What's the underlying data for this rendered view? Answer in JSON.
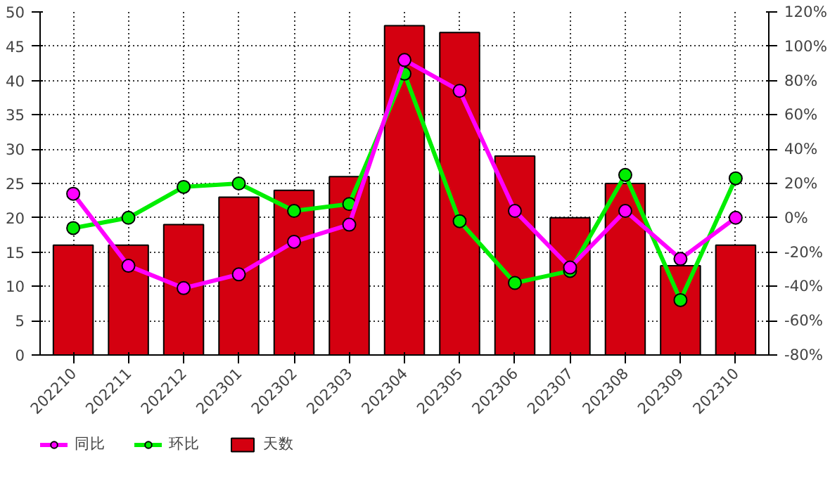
{
  "chart_data": {
    "type": "bar",
    "categories": [
      "202210",
      "202211",
      "202212",
      "202301",
      "202302",
      "202303",
      "202304",
      "202305",
      "202306",
      "202307",
      "202308",
      "202309",
      "202310"
    ],
    "series": [
      {
        "name": "同比",
        "type": "line",
        "axis": "y2",
        "color": "#ff00ff",
        "values": [
          14,
          -28,
          -41,
          -33,
          -14,
          -4,
          92,
          74,
          4,
          -29,
          4,
          -24,
          0
        ]
      },
      {
        "name": "环比",
        "type": "line",
        "axis": "y2",
        "color": "#00ee00",
        "values": [
          -6,
          0,
          18,
          20,
          4,
          8,
          84,
          -2,
          -38,
          -31,
          25,
          -48,
          23
        ]
      },
      {
        "name": "天数",
        "type": "bar",
        "color": "#d40010",
        "values": [
          16,
          16,
          19,
          23,
          24,
          26,
          48,
          47,
          29,
          20,
          25,
          13,
          16
        ]
      }
    ],
    "ylim": [
      0,
      50
    ],
    "yticks": [
      0,
      5,
      10,
      15,
      20,
      25,
      30,
      35,
      40,
      45,
      50
    ],
    "y2lim": [
      -80,
      120
    ],
    "y2ticks": [
      {
        "value": -80,
        "label": "-80%"
      },
      {
        "value": -60,
        "label": "-60%"
      },
      {
        "value": -40,
        "label": "-40%"
      },
      {
        "value": -20,
        "label": "-20%"
      },
      {
        "value": 0,
        "label": "0%"
      },
      {
        "value": 20,
        "label": "20%"
      },
      {
        "value": 40,
        "label": "40%"
      },
      {
        "value": 60,
        "label": "60%"
      },
      {
        "value": 80,
        "label": "80%"
      },
      {
        "value": 100,
        "label": "100%"
      },
      {
        "value": 120,
        "label": "120%"
      }
    ],
    "grid": true,
    "legend": "bottom left",
    "marker": "circle",
    "line_style": "solid"
  }
}
